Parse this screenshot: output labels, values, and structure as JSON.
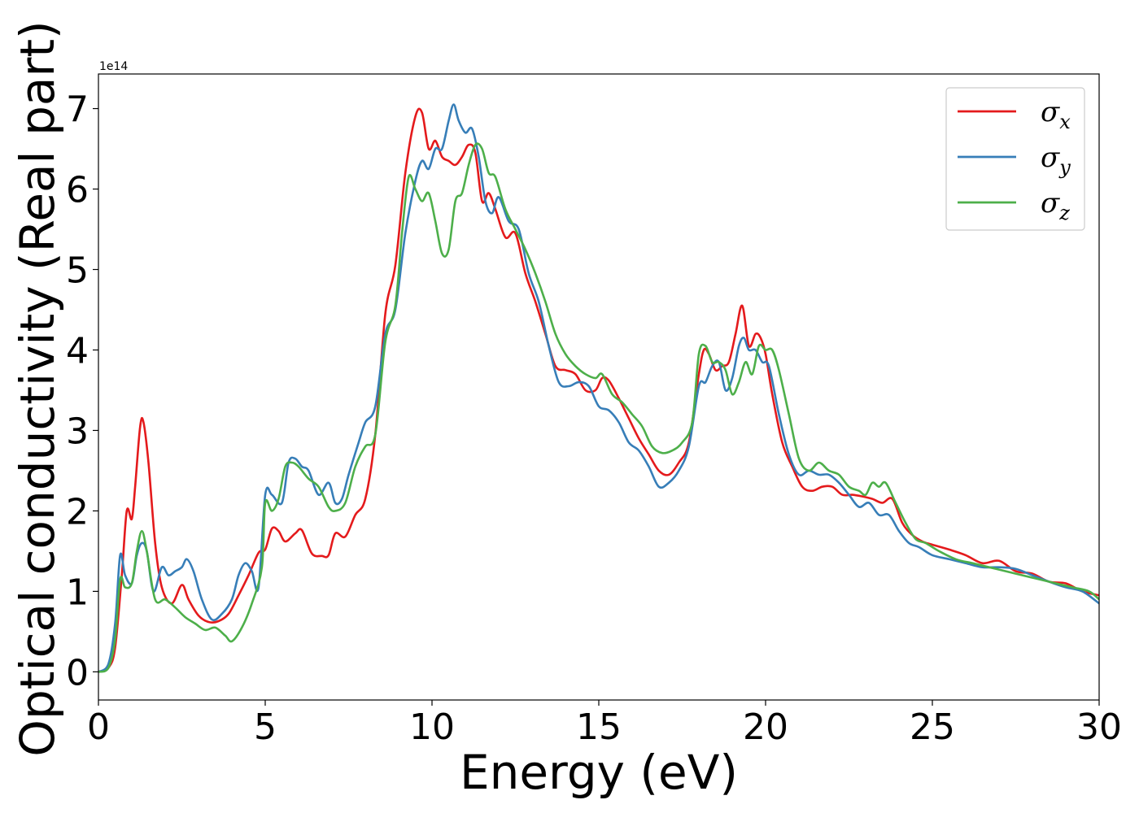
{
  "chart_data": {
    "type": "line",
    "xlabel": "Energy (eV)",
    "ylabel": "Optical conductivity (Real part)",
    "y_offset_text": "1e14",
    "y_scale_factor": 100000000000000.0,
    "xlim": [
      0,
      30
    ],
    "ylim": [
      -0.35,
      7.43
    ],
    "x_ticks": [
      0,
      5,
      10,
      15,
      20,
      25,
      30
    ],
    "x_tick_labels": [
      "0",
      "5",
      "10",
      "15",
      "20",
      "25",
      "30"
    ],
    "y_ticks": [
      0,
      1,
      2,
      3,
      4,
      5,
      6,
      7
    ],
    "y_tick_labels": [
      "0",
      "1",
      "2",
      "3",
      "4",
      "5",
      "6",
      "7"
    ],
    "grid": false,
    "legend_position": "top-right",
    "series": [
      {
        "name": "x",
        "color": "#e41a1c",
        "x": [
          0,
          0.3,
          0.5,
          0.7,
          0.85,
          1.0,
          1.1,
          1.25,
          1.35,
          1.5,
          1.7,
          1.9,
          2.2,
          2.5,
          2.7,
          3.0,
          3.3,
          3.6,
          3.9,
          4.2,
          4.5,
          4.8,
          5.0,
          5.2,
          5.4,
          5.6,
          5.9,
          6.1,
          6.4,
          6.7,
          6.9,
          7.1,
          7.4,
          7.7,
          8.0,
          8.3,
          8.6,
          8.9,
          9.2,
          9.5,
          9.7,
          9.9,
          10.1,
          10.3,
          10.5,
          10.7,
          10.9,
          11.1,
          11.3,
          11.5,
          11.7,
          11.9,
          12.2,
          12.5,
          12.8,
          13.1,
          13.4,
          13.7,
          14.0,
          14.3,
          14.6,
          14.9,
          15.1,
          15.3,
          15.6,
          15.9,
          16.2,
          16.5,
          16.8,
          17.1,
          17.4,
          17.7,
          18.0,
          18.15,
          18.3,
          18.5,
          18.7,
          18.9,
          19.1,
          19.3,
          19.5,
          19.7,
          19.85,
          20.0,
          20.2,
          20.5,
          20.8,
          21.1,
          21.4,
          21.7,
          22.0,
          22.3,
          22.6,
          22.9,
          23.2,
          23.5,
          23.8,
          24.1,
          24.4,
          24.7,
          25.0,
          25.5,
          26.0,
          26.5,
          27.0,
          27.5,
          28.0,
          28.5,
          29.0,
          29.5,
          30.0
        ],
        "values": [
          0,
          0.05,
          0.3,
          1.2,
          2.0,
          1.9,
          2.3,
          3.05,
          3.1,
          2.6,
          1.6,
          1.05,
          0.85,
          1.08,
          0.9,
          0.7,
          0.62,
          0.63,
          0.72,
          0.95,
          1.2,
          1.48,
          1.52,
          1.78,
          1.75,
          1.62,
          1.72,
          1.76,
          1.47,
          1.44,
          1.45,
          1.72,
          1.68,
          1.95,
          2.15,
          2.95,
          4.45,
          5.05,
          6.2,
          6.9,
          6.95,
          6.5,
          6.6,
          6.4,
          6.35,
          6.3,
          6.4,
          6.55,
          6.45,
          5.85,
          5.95,
          5.75,
          5.4,
          5.45,
          4.95,
          4.6,
          4.2,
          3.8,
          3.75,
          3.7,
          3.5,
          3.5,
          3.65,
          3.62,
          3.4,
          3.15,
          2.9,
          2.7,
          2.5,
          2.45,
          2.6,
          2.85,
          3.7,
          4.0,
          3.95,
          3.75,
          3.8,
          3.85,
          4.2,
          4.55,
          4.05,
          4.2,
          4.15,
          3.95,
          3.45,
          2.85,
          2.55,
          2.3,
          2.25,
          2.3,
          2.3,
          2.2,
          2.2,
          2.18,
          2.15,
          2.1,
          2.15,
          1.85,
          1.7,
          1.62,
          1.58,
          1.52,
          1.45,
          1.35,
          1.38,
          1.25,
          1.22,
          1.12,
          1.1,
          1.0,
          0.95
        ]
      },
      {
        "name": "y",
        "color": "#377eb8",
        "x": [
          0,
          0.3,
          0.5,
          0.65,
          0.8,
          1.0,
          1.15,
          1.3,
          1.45,
          1.65,
          1.9,
          2.1,
          2.3,
          2.5,
          2.65,
          2.85,
          3.1,
          3.4,
          3.7,
          4.0,
          4.2,
          4.4,
          4.6,
          4.8,
          5.0,
          5.2,
          5.5,
          5.7,
          5.9,
          6.1,
          6.3,
          6.6,
          6.9,
          7.1,
          7.3,
          7.5,
          7.8,
          8.0,
          8.3,
          8.6,
          8.9,
          9.2,
          9.5,
          9.7,
          9.9,
          10.1,
          10.3,
          10.5,
          10.65,
          10.8,
          11.0,
          11.2,
          11.4,
          11.6,
          11.8,
          12.0,
          12.3,
          12.6,
          12.9,
          13.2,
          13.5,
          13.8,
          14.1,
          14.4,
          14.7,
          15.0,
          15.3,
          15.6,
          15.9,
          16.2,
          16.5,
          16.8,
          17.1,
          17.4,
          17.7,
          18.0,
          18.2,
          18.4,
          18.6,
          18.8,
          19.0,
          19.2,
          19.35,
          19.5,
          19.7,
          19.9,
          20.1,
          20.4,
          20.7,
          21.0,
          21.3,
          21.6,
          21.9,
          22.2,
          22.5,
          22.8,
          23.1,
          23.4,
          23.7,
          24.0,
          24.3,
          24.6,
          25.0,
          25.5,
          26.0,
          26.5,
          27.0,
          27.5,
          28.0,
          28.5,
          29.0,
          29.5,
          30.0
        ],
        "values": [
          0,
          0.1,
          0.6,
          1.45,
          1.2,
          1.1,
          1.45,
          1.6,
          1.5,
          1.0,
          1.3,
          1.2,
          1.25,
          1.3,
          1.4,
          1.25,
          0.9,
          0.65,
          0.72,
          0.9,
          1.2,
          1.35,
          1.25,
          1.05,
          2.2,
          2.2,
          2.1,
          2.6,
          2.65,
          2.55,
          2.5,
          2.2,
          2.35,
          2.1,
          2.15,
          2.45,
          2.85,
          3.1,
          3.3,
          4.2,
          4.5,
          5.45,
          6.1,
          6.35,
          6.25,
          6.5,
          6.5,
          6.85,
          7.05,
          6.85,
          6.7,
          6.75,
          6.4,
          5.85,
          5.7,
          5.9,
          5.6,
          5.5,
          4.95,
          4.6,
          4.05,
          3.6,
          3.55,
          3.6,
          3.55,
          3.3,
          3.25,
          3.1,
          2.85,
          2.75,
          2.55,
          2.3,
          2.35,
          2.5,
          2.8,
          3.55,
          3.6,
          3.8,
          3.85,
          3.5,
          3.65,
          4.05,
          4.15,
          4.0,
          4.0,
          3.85,
          3.8,
          3.2,
          2.7,
          2.45,
          2.5,
          2.45,
          2.45,
          2.35,
          2.2,
          2.05,
          2.1,
          1.95,
          1.95,
          1.75,
          1.6,
          1.55,
          1.45,
          1.4,
          1.35,
          1.3,
          1.3,
          1.28,
          1.2,
          1.12,
          1.05,
          1.0,
          0.85
        ]
      },
      {
        "name": "z",
        "color": "#4daf4a",
        "x": [
          0,
          0.3,
          0.5,
          0.65,
          0.8,
          1.0,
          1.15,
          1.3,
          1.45,
          1.7,
          2.0,
          2.3,
          2.6,
          2.9,
          3.2,
          3.5,
          3.8,
          4.0,
          4.3,
          4.6,
          4.9,
          5.0,
          5.2,
          5.4,
          5.6,
          5.8,
          6.0,
          6.3,
          6.6,
          6.9,
          7.1,
          7.4,
          7.7,
          8.0,
          8.3,
          8.6,
          8.9,
          9.1,
          9.3,
          9.5,
          9.7,
          9.9,
          10.1,
          10.3,
          10.5,
          10.7,
          10.9,
          11.1,
          11.3,
          11.5,
          11.7,
          11.9,
          12.2,
          12.5,
          12.8,
          13.1,
          13.4,
          13.7,
          14.0,
          14.3,
          14.6,
          14.9,
          15.1,
          15.4,
          15.7,
          16.0,
          16.3,
          16.6,
          16.9,
          17.2,
          17.5,
          17.8,
          18.0,
          18.2,
          18.4,
          18.6,
          18.8,
          19.0,
          19.2,
          19.4,
          19.6,
          19.8,
          20.0,
          20.2,
          20.4,
          20.7,
          21.0,
          21.3,
          21.6,
          21.9,
          22.2,
          22.5,
          22.8,
          23.0,
          23.2,
          23.4,
          23.6,
          23.9,
          24.2,
          24.5,
          24.8,
          25.2,
          25.7,
          26.2,
          26.7,
          27.2,
          27.7,
          28.2,
          28.7,
          29.2,
          29.7,
          30.0
        ],
        "values": [
          0,
          0.05,
          0.4,
          1.15,
          1.05,
          1.1,
          1.5,
          1.75,
          1.5,
          0.9,
          0.9,
          0.8,
          0.68,
          0.6,
          0.52,
          0.55,
          0.45,
          0.38,
          0.55,
          0.85,
          1.3,
          2.1,
          2.0,
          2.15,
          2.55,
          2.6,
          2.55,
          2.4,
          2.3,
          2.05,
          2.0,
          2.1,
          2.55,
          2.8,
          2.95,
          4.1,
          4.55,
          5.45,
          6.15,
          6.0,
          5.85,
          5.95,
          5.6,
          5.2,
          5.25,
          5.85,
          5.95,
          6.3,
          6.55,
          6.5,
          6.2,
          6.15,
          5.75,
          5.5,
          5.25,
          4.95,
          4.6,
          4.2,
          3.95,
          3.8,
          3.7,
          3.65,
          3.7,
          3.45,
          3.35,
          3.2,
          3.05,
          2.8,
          2.72,
          2.75,
          2.85,
          3.1,
          3.95,
          4.05,
          3.85,
          3.85,
          3.75,
          3.45,
          3.6,
          3.85,
          3.7,
          4.05,
          4.0,
          4.0,
          3.75,
          3.2,
          2.65,
          2.5,
          2.6,
          2.5,
          2.45,
          2.3,
          2.25,
          2.2,
          2.35,
          2.3,
          2.35,
          2.1,
          1.85,
          1.65,
          1.6,
          1.5,
          1.4,
          1.35,
          1.3,
          1.25,
          1.2,
          1.15,
          1.1,
          1.05,
          1.0,
          0.9
        ]
      }
    ]
  }
}
